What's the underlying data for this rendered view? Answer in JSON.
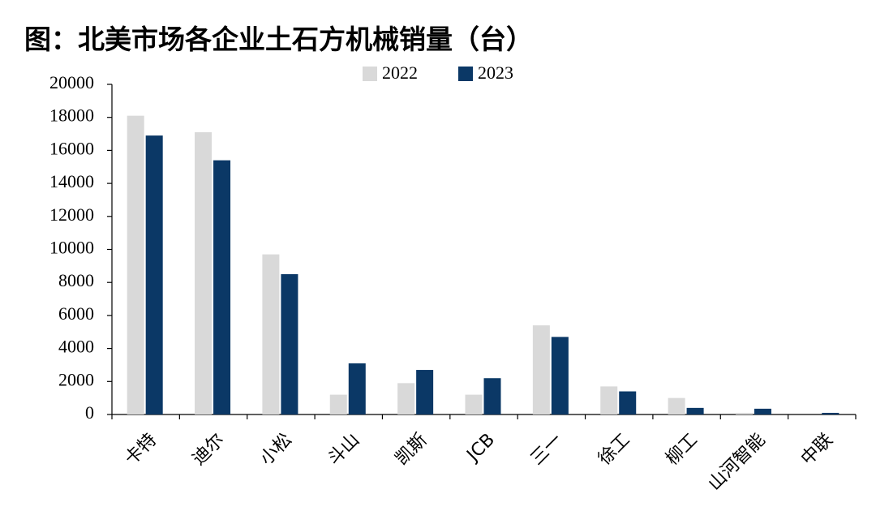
{
  "chart_data": {
    "type": "bar",
    "title": "图：北美市场各企业土石方机械销量（台）",
    "categories": [
      "卡特",
      "迪尔",
      "小松",
      "斗山",
      "凯斯",
      "JCB",
      "三一",
      "徐工",
      "柳工",
      "山河智能",
      "中联"
    ],
    "series": [
      {
        "name": "2022",
        "color": "#d9d9d9",
        "values": [
          18100,
          17100,
          9700,
          1200,
          1900,
          1200,
          5400,
          1700,
          1000,
          100,
          0
        ]
      },
      {
        "name": "2023",
        "color": "#0b3866",
        "values": [
          16900,
          15400,
          8500,
          3100,
          2700,
          2200,
          4700,
          1400,
          400,
          350,
          100
        ]
      }
    ],
    "ylim": [
      0,
      20000
    ],
    "yticks": [
      0,
      2000,
      4000,
      6000,
      8000,
      10000,
      12000,
      14000,
      16000,
      18000,
      20000
    ],
    "grid": false,
    "legend": "top"
  }
}
